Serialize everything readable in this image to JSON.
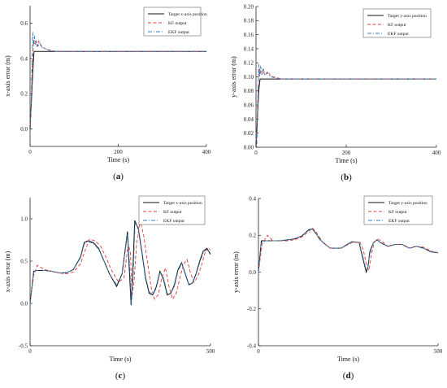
{
  "colors": {
    "target": "#111111",
    "kf": "#e8373a",
    "ekf": "#2f7fbf",
    "axis": "#222222"
  },
  "chart_data": [
    {
      "type": "line",
      "panel_label": "a",
      "xlabel": "Time (s)",
      "ylabel": "x-axis error (m)",
      "xlim": [
        0,
        400
      ],
      "ylim": [
        -0.1,
        0.7
      ],
      "xticks": [
        0,
        200,
        400
      ],
      "yticks": [
        0.0,
        0.2,
        0.4,
        0.6
      ],
      "ytick_labels": [
        "0.0",
        "0.2",
        "0.4",
        "0.6"
      ],
      "legend_position": "top-right",
      "series": [
        {
          "name": "Target x-axis position",
          "style": "solid",
          "x": [
            0,
            3,
            6,
            9,
            50,
            400
          ],
          "y": [
            0.0,
            0.15,
            0.32,
            0.44,
            0.44,
            0.44
          ]
        },
        {
          "name": "KF output",
          "style": "dash",
          "x": [
            0,
            2,
            4,
            6,
            8,
            10,
            13,
            16,
            20,
            25,
            30,
            40,
            50,
            60,
            400
          ],
          "y": [
            0.02,
            0.1,
            0.25,
            0.42,
            0.5,
            0.48,
            0.5,
            0.47,
            0.5,
            0.47,
            0.46,
            0.45,
            0.445,
            0.44,
            0.44
          ]
        },
        {
          "name": "EKF output",
          "style": "dashdot",
          "x": [
            0,
            2,
            4,
            6,
            8,
            10,
            12,
            15,
            18,
            22,
            28,
            35,
            45,
            60,
            400
          ],
          "y": [
            0.04,
            0.1,
            0.33,
            0.55,
            0.47,
            0.53,
            0.48,
            0.5,
            0.47,
            0.49,
            0.46,
            0.455,
            0.445,
            0.44,
            0.44
          ]
        }
      ]
    },
    {
      "type": "line",
      "panel_label": "b",
      "xlabel": "Time (s)",
      "ylabel": "y-axis error (m)",
      "xlim": [
        0,
        400
      ],
      "ylim": [
        0,
        0.2
      ],
      "xticks": [
        0,
        200,
        400
      ],
      "yticks": [
        0.0,
        0.02,
        0.04,
        0.06,
        0.08,
        0.1,
        0.12,
        0.14,
        0.16,
        0.18,
        0.2
      ],
      "ytick_labels": [
        "0.00",
        "0.02",
        "0.04",
        "0.06",
        "0.08",
        "0.10",
        "0.12",
        "0.14",
        "0.16",
        "0.18",
        "0.20"
      ],
      "legend_position": "top-right",
      "series": [
        {
          "name": "Target y-axis position",
          "style": "solid",
          "x": [
            0,
            3,
            6,
            9,
            50,
            400
          ],
          "y": [
            0.0,
            0.04,
            0.08,
            0.097,
            0.097,
            0.097
          ]
        },
        {
          "name": "KF output",
          "style": "dash",
          "x": [
            0,
            2,
            4,
            6,
            8,
            11,
            15,
            20,
            26,
            33,
            40,
            50,
            60,
            400
          ],
          "y": [
            0.01,
            0.03,
            0.07,
            0.105,
            0.112,
            0.104,
            0.11,
            0.102,
            0.108,
            0.101,
            0.1,
            0.098,
            0.097,
            0.097
          ]
        },
        {
          "name": "EKF output",
          "style": "dashdot",
          "x": [
            0,
            2,
            4,
            6,
            8,
            10,
            13,
            16,
            20,
            25,
            32,
            40,
            55,
            400
          ],
          "y": [
            0.02,
            0.005,
            0.06,
            0.118,
            0.1,
            0.116,
            0.103,
            0.112,
            0.102,
            0.106,
            0.1,
            0.099,
            0.097,
            0.097
          ]
        }
      ]
    },
    {
      "type": "line",
      "panel_label": "c",
      "xlabel": "Time (s)",
      "ylabel": "x-axis error (m)",
      "xlim": [
        0,
        500
      ],
      "ylim": [
        -0.5,
        1.25
      ],
      "xticks": [
        0,
        500
      ],
      "yticks": [
        -0.5,
        0.0,
        0.5,
        1.0
      ],
      "ytick_labels": [
        "-0.5",
        "0.0",
        "0.5",
        "1.0"
      ],
      "legend_position": "top-right",
      "series": [
        {
          "name": "Target x-axis position",
          "style": "solid",
          "x": [
            0,
            10,
            20,
            40,
            60,
            80,
            100,
            120,
            140,
            150,
            160,
            175,
            190,
            205,
            220,
            240,
            255,
            270,
            275,
            280,
            285,
            290,
            300,
            310,
            320,
            330,
            340,
            350,
            360,
            370,
            380,
            390,
            400,
            410,
            420,
            430,
            440,
            450,
            460,
            470,
            480,
            490,
            500
          ],
          "y": [
            0.0,
            0.38,
            0.39,
            0.39,
            0.38,
            0.36,
            0.36,
            0.4,
            0.55,
            0.72,
            0.74,
            0.72,
            0.65,
            0.5,
            0.35,
            0.2,
            0.35,
            0.85,
            0.4,
            -0.02,
            0.4,
            0.98,
            0.88,
            0.6,
            0.3,
            0.12,
            0.1,
            0.2,
            0.38,
            0.28,
            0.1,
            0.12,
            0.22,
            0.4,
            0.48,
            0.35,
            0.22,
            0.24,
            0.35,
            0.5,
            0.62,
            0.65,
            0.58
          ]
        },
        {
          "name": "KF output",
          "style": "dash",
          "x": [
            0,
            10,
            20,
            40,
            60,
            80,
            100,
            120,
            140,
            150,
            165,
            180,
            195,
            210,
            225,
            245,
            260,
            272,
            278,
            283,
            288,
            295,
            305,
            315,
            325,
            335,
            345,
            355,
            365,
            375,
            385,
            395,
            405,
            415,
            425,
            435,
            445,
            455,
            465,
            475,
            485,
            495,
            500
          ],
          "y": [
            0.0,
            0.33,
            0.45,
            0.4,
            0.38,
            0.36,
            0.35,
            0.37,
            0.47,
            0.6,
            0.76,
            0.74,
            0.68,
            0.55,
            0.4,
            0.25,
            0.3,
            0.7,
            0.6,
            0.1,
            0.25,
            0.7,
            0.98,
            0.8,
            0.5,
            0.2,
            0.05,
            0.1,
            0.3,
            0.42,
            0.2,
            0.05,
            0.12,
            0.3,
            0.46,
            0.52,
            0.35,
            0.25,
            0.32,
            0.45,
            0.6,
            0.66,
            0.63
          ]
        },
        {
          "name": "EKF output",
          "style": "dashdot",
          "x": [
            0,
            10,
            20,
            40,
            60,
            80,
            100,
            120,
            140,
            150,
            160,
            175,
            190,
            205,
            220,
            240,
            255,
            270,
            276,
            281,
            286,
            291,
            300,
            310,
            320,
            330,
            340,
            350,
            360,
            370,
            380,
            390,
            400,
            410,
            420,
            430,
            440,
            450,
            460,
            470,
            480,
            490,
            500
          ],
          "y": [
            0.0,
            0.37,
            0.39,
            0.39,
            0.38,
            0.36,
            0.36,
            0.4,
            0.54,
            0.7,
            0.73,
            0.71,
            0.64,
            0.5,
            0.35,
            0.22,
            0.35,
            0.82,
            0.45,
            0.0,
            0.35,
            0.95,
            0.9,
            0.62,
            0.32,
            0.14,
            0.1,
            0.18,
            0.37,
            0.3,
            0.12,
            0.12,
            0.2,
            0.38,
            0.47,
            0.36,
            0.23,
            0.24,
            0.34,
            0.48,
            0.6,
            0.64,
            0.6
          ]
        }
      ]
    },
    {
      "type": "line",
      "panel_label": "d",
      "xlabel": "Time (s)",
      "ylabel": "y-axis error (m)",
      "xlim": [
        0,
        500
      ],
      "ylim": [
        -0.4,
        0.4
      ],
      "xticks": [
        0,
        500
      ],
      "yticks": [
        -0.4,
        -0.2,
        0.0,
        0.2,
        0.4
      ],
      "ytick_labels": [
        "-0.4",
        "-0.2",
        "0.0",
        "0.2",
        "0.4"
      ],
      "legend_position": "top-right",
      "series": [
        {
          "name": "Target y-axis position",
          "style": "solid",
          "x": [
            0,
            8,
            20,
            40,
            60,
            80,
            100,
            120,
            140,
            150,
            160,
            170,
            180,
            200,
            230,
            260,
            280,
            290,
            300,
            305,
            310,
            320,
            330,
            340,
            360,
            380,
            400,
            420,
            440,
            460,
            480,
            500
          ],
          "y": [
            0.0,
            0.17,
            0.17,
            0.17,
            0.17,
            0.175,
            0.18,
            0.195,
            0.23,
            0.235,
            0.21,
            0.18,
            0.16,
            0.13,
            0.13,
            0.165,
            0.16,
            0.08,
            0.0,
            0.03,
            0.11,
            0.16,
            0.175,
            0.16,
            0.14,
            0.15,
            0.15,
            0.13,
            0.14,
            0.13,
            0.11,
            0.105
          ]
        },
        {
          "name": "KF output",
          "style": "dash",
          "x": [
            0,
            10,
            25,
            40,
            60,
            80,
            100,
            120,
            140,
            150,
            160,
            170,
            180,
            200,
            230,
            260,
            282,
            292,
            302,
            308,
            314,
            322,
            332,
            342,
            360,
            380,
            400,
            420,
            440,
            460,
            480,
            500
          ],
          "y": [
            0.0,
            0.15,
            0.2,
            0.17,
            0.17,
            0.17,
            0.175,
            0.19,
            0.22,
            0.24,
            0.22,
            0.19,
            0.16,
            0.13,
            0.13,
            0.16,
            0.165,
            0.12,
            0.03,
            0.01,
            0.09,
            0.16,
            0.18,
            0.17,
            0.14,
            0.15,
            0.15,
            0.13,
            0.14,
            0.135,
            0.115,
            0.105
          ]
        },
        {
          "name": "EKF output",
          "style": "dashdot",
          "x": [
            0,
            8,
            20,
            40,
            60,
            80,
            100,
            120,
            140,
            150,
            160,
            170,
            180,
            200,
            230,
            260,
            280,
            290,
            300,
            305,
            310,
            320,
            330,
            340,
            360,
            380,
            400,
            420,
            440,
            460,
            480,
            500
          ],
          "y": [
            0.0,
            0.16,
            0.17,
            0.17,
            0.17,
            0.175,
            0.18,
            0.195,
            0.228,
            0.234,
            0.21,
            0.18,
            0.16,
            0.13,
            0.13,
            0.165,
            0.16,
            0.09,
            0.01,
            0.03,
            0.1,
            0.16,
            0.174,
            0.16,
            0.14,
            0.15,
            0.15,
            0.13,
            0.14,
            0.13,
            0.11,
            0.105
          ]
        }
      ]
    }
  ]
}
